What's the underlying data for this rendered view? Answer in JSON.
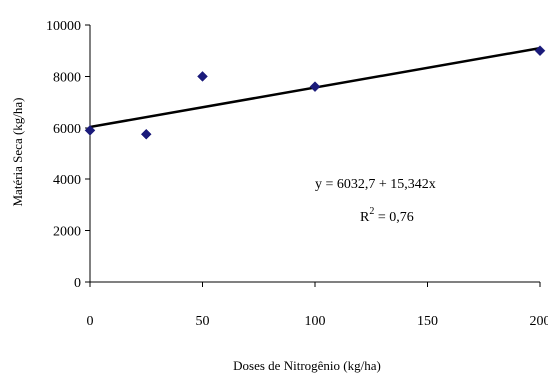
{
  "chart_data": {
    "type": "scatter",
    "title": "",
    "xlabel": "Doses de Nitrogênio (kg/ha)",
    "ylabel": "Matéria Seca (kg/ha)",
    "xlim": [
      0,
      200
    ],
    "ylim": [
      0,
      10000
    ],
    "x_ticks": [
      0,
      50,
      100,
      150,
      200
    ],
    "y_ticks": [
      0,
      2000,
      4000,
      6000,
      8000,
      10000
    ],
    "grid": false,
    "legend": "none",
    "series": [
      {
        "x": [
          0,
          25,
          50,
          100,
          200
        ],
        "y": [
          5900,
          5750,
          8000,
          7600,
          9000
        ],
        "marker": "diamond",
        "color": "#1a1a7a"
      }
    ],
    "trendline": {
      "intercept": 6032.7,
      "slope": 15.342,
      "color": "#000000"
    },
    "annotations": {
      "equation": "y = 6032,7 + 15,342x",
      "r2_prefix": "R",
      "r2_sup": "2",
      "r2_value": " = 0,76"
    }
  }
}
